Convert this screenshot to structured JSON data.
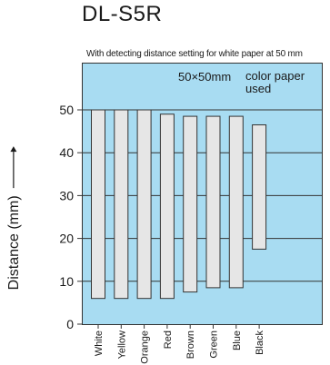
{
  "chart_data": {
    "type": "bar",
    "title": "DL-S5R",
    "subtitle": "With detecting distance setting for white paper at 50 mm",
    "annotation": "50×50mm",
    "annotation_2": [
      "color paper",
      "used"
    ],
    "ylabel": "Distance (mm)",
    "xlabel": "",
    "ylim": [
      0,
      58
    ],
    "yticks": [
      0,
      10,
      20,
      30,
      40,
      50
    ],
    "grid": true,
    "categories": [
      "White",
      "Yellow",
      "Orange",
      "Red",
      "Brown",
      "Green",
      "Blue",
      "Black"
    ],
    "series": [
      {
        "low": [
          6,
          6,
          6,
          6,
          7.5,
          8.5,
          8.5,
          17.5
        ],
        "high": [
          50,
          50,
          50,
          49,
          48.5,
          48.5,
          48.5,
          46.5
        ]
      }
    ]
  }
}
